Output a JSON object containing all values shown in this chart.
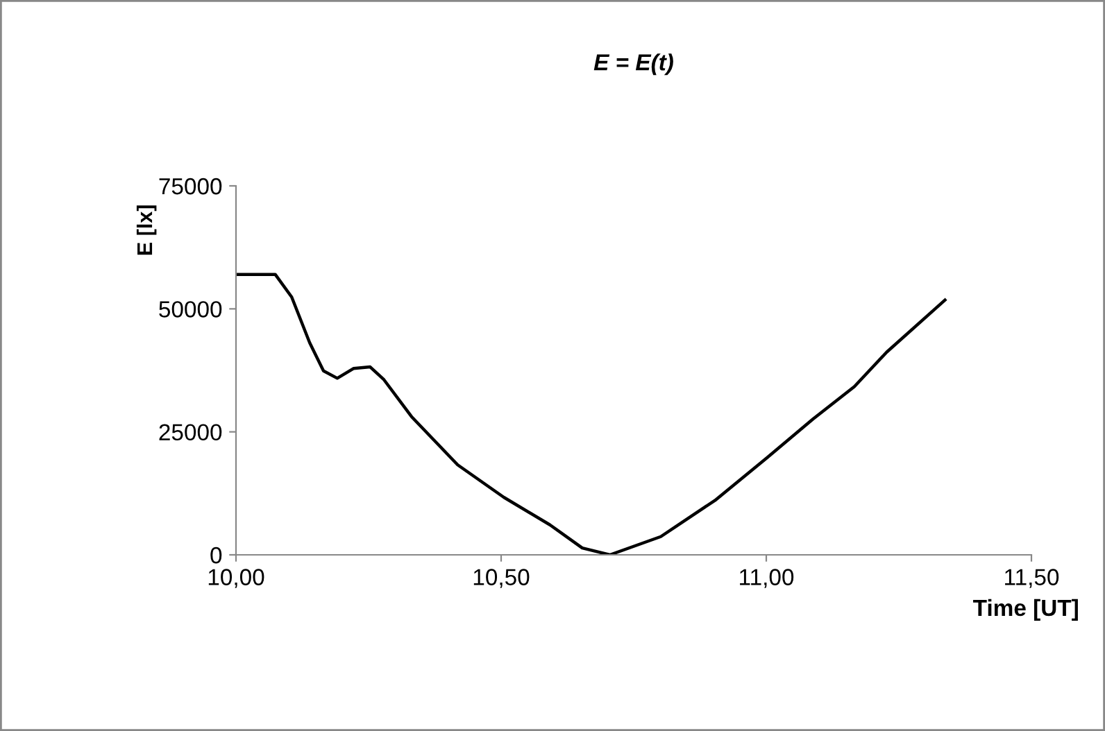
{
  "chart_data": {
    "type": "line",
    "title": "E = E(t)",
    "xlabel": "Time [UT]",
    "ylabel": "E [lx]",
    "x": [
      10.0,
      10.074,
      10.105,
      10.139,
      10.165,
      10.191,
      10.222,
      10.253,
      10.279,
      10.331,
      10.418,
      10.505,
      10.592,
      10.653,
      10.705,
      10.801,
      10.905,
      11.001,
      11.088,
      11.166,
      11.227,
      11.337
    ],
    "series": [
      {
        "color": "#000000",
        "values": [
          57000,
          57000,
          52400,
          43100,
          37400,
          35900,
          37900,
          38200,
          35600,
          28100,
          18300,
          11700,
          6100,
          1400,
          0,
          3700,
          11200,
          19700,
          27600,
          34200,
          41200,
          51800
        ]
      }
    ],
    "xlim": [
      10.0,
      11.5
    ],
    "xticks": [
      {
        "value": 10.0,
        "label": "10,00"
      },
      {
        "value": 10.5,
        "label": "10,50"
      },
      {
        "value": 11.0,
        "label": "11,00"
      },
      {
        "value": 11.5,
        "label": "11,50"
      }
    ],
    "ylim": [
      0,
      75000
    ],
    "yticks": [
      0,
      25000,
      50000,
      75000
    ],
    "grid": false,
    "legend": false,
    "marker": "none",
    "line_style": "solid"
  }
}
